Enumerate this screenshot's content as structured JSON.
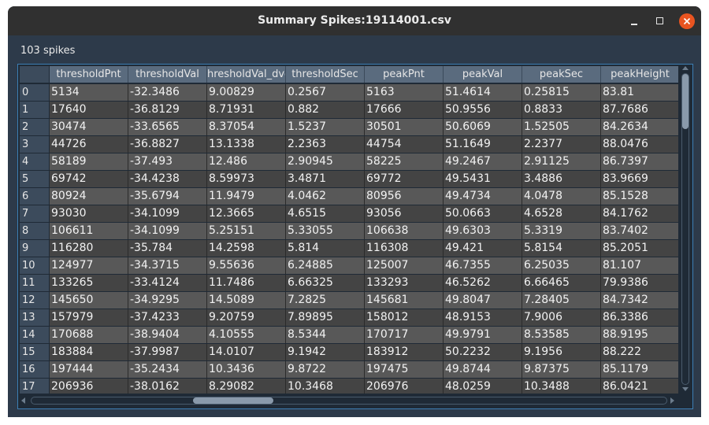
{
  "window": {
    "title": "Summary Spikes:19114001.csv"
  },
  "summary": {
    "spike_count_label": "103 spikes"
  },
  "table": {
    "columns": [
      "thresholdPnt",
      "thresholdVal",
      "hresholdVal_dvd",
      "thresholdSec",
      "peakPnt",
      "peakVal",
      "peakSec",
      "peakHeight"
    ],
    "rows": [
      {
        "index": "0",
        "cells": [
          "5134",
          "-32.3486",
          "9.00829",
          "0.2567",
          "5163",
          "51.4614",
          "0.25815",
          "83.81"
        ]
      },
      {
        "index": "1",
        "cells": [
          "17640",
          "-36.8129",
          "8.71931",
          "0.882",
          "17666",
          "50.9556",
          "0.8833",
          "87.7686"
        ]
      },
      {
        "index": "2",
        "cells": [
          "30474",
          "-33.6565",
          "8.37054",
          "1.5237",
          "30501",
          "50.6069",
          "1.52505",
          "84.2634"
        ]
      },
      {
        "index": "3",
        "cells": [
          "44726",
          "-36.8827",
          "13.1338",
          "2.2363",
          "44754",
          "51.1649",
          "2.2377",
          "88.0476"
        ]
      },
      {
        "index": "4",
        "cells": [
          "58189",
          "-37.493",
          "12.486",
          "2.90945",
          "58225",
          "49.2467",
          "2.91125",
          "86.7397"
        ]
      },
      {
        "index": "5",
        "cells": [
          "69742",
          "-34.4238",
          "8.59973",
          "3.4871",
          "69772",
          "49.5431",
          "3.4886",
          "83.9669"
        ]
      },
      {
        "index": "6",
        "cells": [
          "80924",
          "-35.6794",
          "11.9479",
          "4.0462",
          "80956",
          "49.4734",
          "4.0478",
          "85.1528"
        ]
      },
      {
        "index": "7",
        "cells": [
          "93030",
          "-34.1099",
          "12.3665",
          "4.6515",
          "93056",
          "50.0663",
          "4.6528",
          "84.1762"
        ]
      },
      {
        "index": "8",
        "cells": [
          "106611",
          "-34.1099",
          "5.25151",
          "5.33055",
          "106638",
          "49.6303",
          "5.3319",
          "83.7402"
        ]
      },
      {
        "index": "9",
        "cells": [
          "116280",
          "-35.784",
          "14.2598",
          "5.814",
          "116308",
          "49.421",
          "5.8154",
          "85.2051"
        ]
      },
      {
        "index": "10",
        "cells": [
          "124977",
          "-34.3715",
          "9.55636",
          "6.24885",
          "125007",
          "46.7355",
          "6.25035",
          "81.107"
        ]
      },
      {
        "index": "11",
        "cells": [
          "133265",
          "-33.4124",
          "11.7486",
          "6.66325",
          "133293",
          "46.5262",
          "6.66465",
          "79.9386"
        ]
      },
      {
        "index": "12",
        "cells": [
          "145650",
          "-34.9295",
          "14.5089",
          "7.2825",
          "145681",
          "49.8047",
          "7.28405",
          "84.7342"
        ]
      },
      {
        "index": "13",
        "cells": [
          "157979",
          "-37.4233",
          "9.20759",
          "7.89895",
          "158012",
          "48.9153",
          "7.9006",
          "86.3386"
        ]
      },
      {
        "index": "14",
        "cells": [
          "170688",
          "-38.9404",
          "4.10555",
          "8.5344",
          "170717",
          "49.9791",
          "8.53585",
          "88.9195"
        ]
      },
      {
        "index": "15",
        "cells": [
          "183884",
          "-37.9987",
          "14.0107",
          "9.1942",
          "183912",
          "50.2232",
          "9.1956",
          "88.222"
        ]
      },
      {
        "index": "16",
        "cells": [
          "197444",
          "-35.2434",
          "10.3436",
          "9.8722",
          "197475",
          "49.8744",
          "9.87375",
          "85.1179"
        ]
      },
      {
        "index": "17",
        "cells": [
          "206936",
          "-38.0162",
          "8.29082",
          "10.3468",
          "206976",
          "48.0259",
          "10.3488",
          "86.0421"
        ]
      }
    ]
  },
  "scroll": {
    "vertical_position": 0.0,
    "horizontal_position": 0.25
  },
  "colors": {
    "close_button": "#e95420",
    "frame_accent": "#3d7fb5",
    "header_bg": "#5a6b7e"
  }
}
